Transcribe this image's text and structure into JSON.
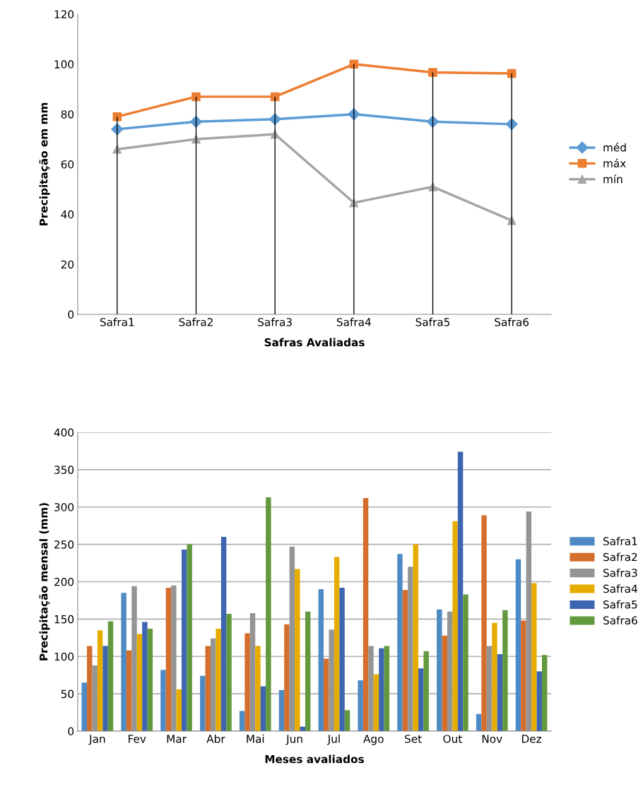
{
  "chart_data": [
    {
      "type": "line",
      "xlabel": "Safras Avaliadas",
      "ylabel": "Precipitação em mm",
      "categories": [
        "Safra1",
        "Safra2",
        "Safra3",
        "Safra4",
        "Safra5",
        "Safra6"
      ],
      "ylim": [
        0,
        120
      ],
      "yticks": [
        0,
        20,
        40,
        60,
        80,
        100,
        120
      ],
      "grid": false,
      "legend": "right",
      "series": [
        {
          "type": "bar",
          "color": "#000000",
          "values": [
            79,
            87,
            87,
            100,
            96.7,
            96.3
          ]
        },
        {
          "name": "méd",
          "color": "#5b9bd5",
          "marker": "diamond",
          "values": [
            74,
            77,
            78,
            80,
            77,
            76
          ]
        },
        {
          "name": "máx",
          "color": "#ed7d31",
          "marker": "square",
          "values": [
            79,
            87,
            87,
            100,
            96.7,
            96.3
          ]
        },
        {
          "name": "mín",
          "color": "#a5a5a5",
          "marker": "triangle",
          "values": [
            66,
            70,
            72,
            44.6,
            51,
            37.5
          ]
        }
      ]
    },
    {
      "type": "bar",
      "xlabel": "Meses avaliados",
      "ylabel": "Precipitação mensal (mm)",
      "categories": [
        "Jan",
        "Fev",
        "Mar",
        "Abr",
        "Mai",
        "Jun",
        "Jul",
        "Ago",
        "Set",
        "Out",
        "Nov",
        "Dez"
      ],
      "ylim": [
        0,
        400
      ],
      "yticks": [
        0,
        50,
        100,
        150,
        200,
        250,
        300,
        350,
        400
      ],
      "grid": "y",
      "legend": "right",
      "series": [
        {
          "name": "Safra1",
          "color": "#4e8ac4",
          "values": [
            65,
            185,
            82,
            74,
            27,
            55,
            190,
            68,
            237,
            163,
            23,
            230
          ]
        },
        {
          "name": "Safra2",
          "color": "#d46e2c",
          "values": [
            114,
            108,
            192,
            114,
            131,
            143,
            97,
            312,
            189,
            128,
            289,
            148
          ]
        },
        {
          "name": "Safra3",
          "color": "#959595",
          "values": [
            88,
            194,
            195,
            124,
            158,
            247,
            136,
            114,
            220,
            160,
            114,
            294
          ]
        },
        {
          "name": "Safra4",
          "color": "#e6ac00",
          "values": [
            135,
            130,
            56,
            137,
            114,
            217,
            233,
            76,
            250,
            281,
            145,
            198
          ]
        },
        {
          "name": "Safra5",
          "color": "#3e65b0",
          "values": [
            114,
            146,
            243,
            260,
            60,
            6,
            192,
            111,
            84,
            374,
            103,
            80
          ]
        },
        {
          "name": "Safra6",
          "color": "#62993e",
          "values": [
            147,
            137,
            250,
            157,
            313,
            160,
            28,
            114,
            107,
            183,
            162,
            102
          ]
        }
      ]
    }
  ]
}
